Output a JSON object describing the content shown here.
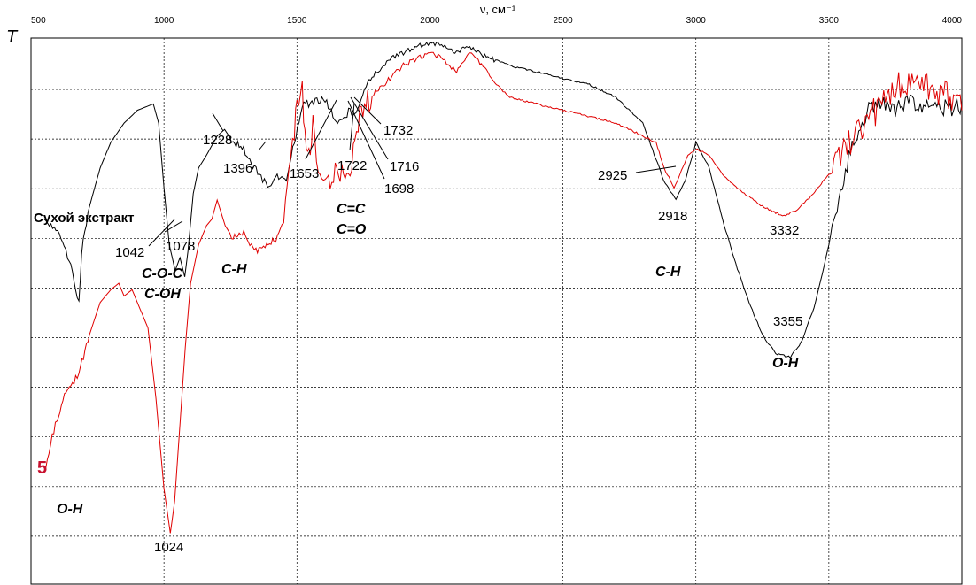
{
  "chart_data": {
    "type": "line",
    "title": "",
    "xlabel": "ν, см⁻¹",
    "ylabel": "T",
    "xlim": [
      500,
      4000
    ],
    "x_ticks": [
      "500",
      "1000",
      "1500",
      "2000",
      "2500",
      "3000",
      "3500",
      "4000"
    ],
    "grid": true,
    "series": [
      {
        "name": "Сухой экстракт",
        "color": "#000000",
        "points": [
          [
            550,
            0.8
          ],
          [
            600,
            0.78
          ],
          [
            650,
            0.73
          ],
          [
            680,
            0.67
          ],
          [
            690,
            0.75
          ],
          [
            720,
            0.82
          ],
          [
            760,
            0.88
          ],
          [
            800,
            0.92
          ],
          [
            850,
            0.95
          ],
          [
            900,
            0.97
          ],
          [
            960,
            0.98
          ],
          [
            980,
            0.95
          ],
          [
            1000,
            0.85
          ],
          [
            1020,
            0.76
          ],
          [
            1042,
            0.72
          ],
          [
            1060,
            0.74
          ],
          [
            1078,
            0.71
          ],
          [
            1090,
            0.75
          ],
          [
            1110,
            0.84
          ],
          [
            1130,
            0.88
          ],
          [
            1160,
            0.9
          ],
          [
            1200,
            0.93
          ],
          [
            1228,
            0.94
          ],
          [
            1260,
            0.92
          ],
          [
            1300,
            0.91
          ],
          [
            1340,
            0.88
          ],
          [
            1396,
            0.85
          ],
          [
            1420,
            0.87
          ],
          [
            1460,
            0.86
          ],
          [
            1490,
            0.92
          ],
          [
            1520,
            0.98
          ],
          [
            1550,
            0.98
          ],
          [
            1600,
            0.99
          ],
          [
            1653,
            0.95
          ],
          [
            1700,
            0.97
          ],
          [
            1722,
            0.96
          ],
          [
            1760,
            1.01
          ],
          [
            1800,
            1.03
          ],
          [
            1850,
            1.05
          ],
          [
            1900,
            1.06
          ],
          [
            1950,
            1.07
          ],
          [
            2000,
            1.075
          ],
          [
            2050,
            1.07
          ],
          [
            2100,
            1.06
          ],
          [
            2150,
            1.07
          ],
          [
            2200,
            1.055
          ],
          [
            2300,
            1.04
          ],
          [
            2400,
            1.03
          ],
          [
            2500,
            1.02
          ],
          [
            2600,
            1.01
          ],
          [
            2700,
            0.99
          ],
          [
            2800,
            0.95
          ],
          [
            2880,
            0.86
          ],
          [
            2925,
            0.83
          ],
          [
            2960,
            0.86
          ],
          [
            3000,
            0.92
          ],
          [
            3050,
            0.88
          ],
          [
            3100,
            0.8
          ],
          [
            3150,
            0.73
          ],
          [
            3200,
            0.67
          ],
          [
            3250,
            0.62
          ],
          [
            3300,
            0.59
          ],
          [
            3355,
            0.585
          ],
          [
            3400,
            0.61
          ],
          [
            3450,
            0.67
          ],
          [
            3500,
            0.76
          ],
          [
            3550,
            0.86
          ],
          [
            3600,
            0.93
          ],
          [
            3650,
            0.97
          ],
          [
            3700,
            0.98
          ],
          [
            3750,
            0.97
          ],
          [
            3800,
            0.99
          ],
          [
            3850,
            0.97
          ],
          [
            3900,
            0.98
          ],
          [
            3950,
            0.97
          ],
          [
            4000,
            0.98
          ]
        ]
      },
      {
        "name": "5",
        "color": "#e00000",
        "points": [
          [
            555,
            0.41
          ],
          [
            580,
            0.46
          ],
          [
            620,
            0.52
          ],
          [
            680,
            0.56
          ],
          [
            720,
            0.62
          ],
          [
            760,
            0.67
          ],
          [
            800,
            0.69
          ],
          [
            830,
            0.7
          ],
          [
            850,
            0.68
          ],
          [
            880,
            0.69
          ],
          [
            900,
            0.67
          ],
          [
            940,
            0.63
          ],
          [
            970,
            0.52
          ],
          [
            1000,
            0.38
          ],
          [
            1024,
            0.31
          ],
          [
            1040,
            0.36
          ],
          [
            1060,
            0.48
          ],
          [
            1080,
            0.6
          ],
          [
            1100,
            0.7
          ],
          [
            1130,
            0.76
          ],
          [
            1160,
            0.79
          ],
          [
            1180,
            0.8
          ],
          [
            1200,
            0.83
          ],
          [
            1230,
            0.79
          ],
          [
            1260,
            0.77
          ],
          [
            1300,
            0.78
          ],
          [
            1340,
            0.75
          ],
          [
            1380,
            0.76
          ],
          [
            1420,
            0.77
          ],
          [
            1450,
            0.8
          ],
          [
            1470,
            0.88
          ],
          [
            1490,
            0.93
          ],
          [
            1500,
            0.98
          ],
          [
            1520,
            1.01
          ],
          [
            1530,
            0.93
          ],
          [
            1545,
            0.9
          ],
          [
            1560,
            0.95
          ],
          [
            1580,
            0.88
          ],
          [
            1600,
            0.86
          ],
          [
            1650,
            0.87
          ],
          [
            1700,
            0.88
          ],
          [
            1730,
            0.95
          ],
          [
            1760,
            0.98
          ],
          [
            1800,
            1.0
          ],
          [
            1850,
            1.02
          ],
          [
            1900,
            1.04
          ],
          [
            1950,
            1.05
          ],
          [
            2000,
            1.06
          ],
          [
            2050,
            1.05
          ],
          [
            2100,
            1.03
          ],
          [
            2150,
            1.06
          ],
          [
            2200,
            1.04
          ],
          [
            2250,
            1.01
          ],
          [
            2300,
            0.99
          ],
          [
            2400,
            0.98
          ],
          [
            2500,
            0.97
          ],
          [
            2600,
            0.96
          ],
          [
            2700,
            0.95
          ],
          [
            2800,
            0.93
          ],
          [
            2850,
            0.92
          ],
          [
            2880,
            0.88
          ],
          [
            2918,
            0.85
          ],
          [
            2940,
            0.87
          ],
          [
            2970,
            0.9
          ],
          [
            3000,
            0.91
          ],
          [
            3050,
            0.9
          ],
          [
            3100,
            0.87
          ],
          [
            3150,
            0.85
          ],
          [
            3200,
            0.835
          ],
          [
            3250,
            0.82
          ],
          [
            3300,
            0.81
          ],
          [
            3332,
            0.805
          ],
          [
            3380,
            0.815
          ],
          [
            3420,
            0.83
          ],
          [
            3460,
            0.85
          ],
          [
            3500,
            0.87
          ],
          [
            3550,
            0.9
          ],
          [
            3600,
            0.93
          ],
          [
            3650,
            0.96
          ],
          [
            3700,
            0.98
          ],
          [
            3750,
            1.0
          ],
          [
            3800,
            1.02
          ],
          [
            3850,
            1.01
          ],
          [
            3900,
            1.0
          ],
          [
            3950,
            0.99
          ],
          [
            4000,
            0.97
          ]
        ]
      }
    ],
    "annotations": {
      "peaks": [
        {
          "text": "1228",
          "x": 1228
        },
        {
          "text": "1396",
          "x": 1396
        },
        {
          "text": "1653",
          "x": 1653
        },
        {
          "text": "1722",
          "x": 1722
        },
        {
          "text": "1716",
          "x": 1716
        },
        {
          "text": "1698",
          "x": 1698
        },
        {
          "text": "1732",
          "x": 1732
        },
        {
          "text": "1042",
          "x": 1042
        },
        {
          "text": "1078",
          "x": 1078
        },
        {
          "text": "2925",
          "x": 2925
        },
        {
          "text": "2918",
          "x": 2918
        },
        {
          "text": "3332",
          "x": 3332
        },
        {
          "text": "3355",
          "x": 3355
        },
        {
          "text": "1024",
          "x": 1024
        }
      ],
      "groups": [
        "C-O-C",
        "C-OH",
        "C-H",
        "C=C",
        "C=O",
        "C-H",
        "O-H",
        "O-H"
      ],
      "series_labels": [
        "Сухой экстракт",
        "5"
      ]
    }
  }
}
